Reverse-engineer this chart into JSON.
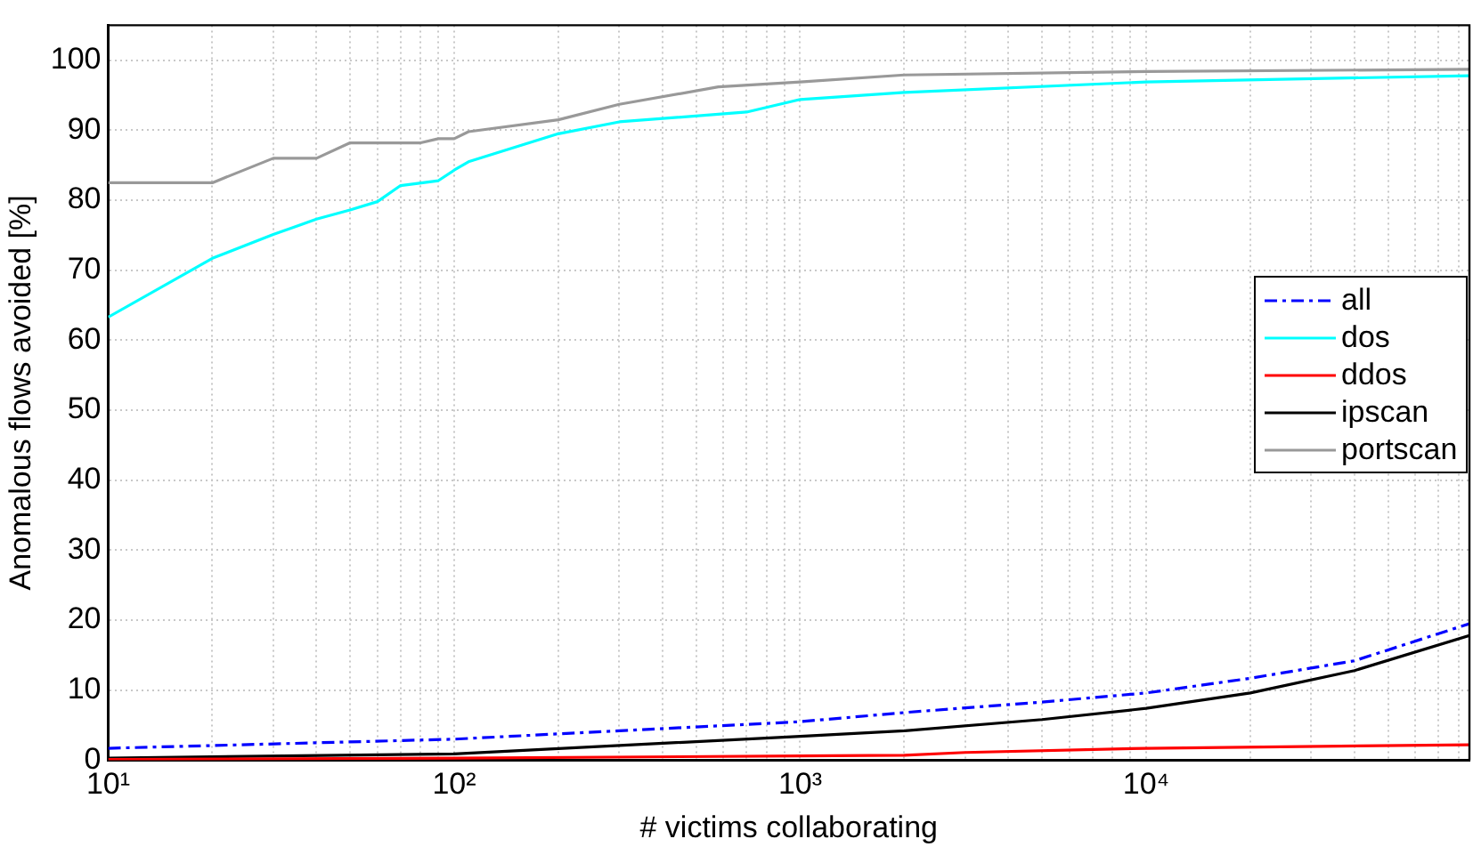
{
  "chart_data": {
    "type": "line",
    "xlabel": "# victims collaborating",
    "ylabel": "Anomalous flows avoided [%]",
    "log": "x",
    "grid": true,
    "legend": "right",
    "marker": "none",
    "xlim": [
      10,
      86000
    ],
    "ylim": [
      0,
      105
    ],
    "xticks": [
      {
        "value": 10,
        "label": "10¹"
      },
      {
        "value": 20,
        "label": null
      },
      {
        "value": 30,
        "label": null
      },
      {
        "value": 40,
        "label": null
      },
      {
        "value": 50,
        "label": null
      },
      {
        "value": 60,
        "label": null
      },
      {
        "value": 70,
        "label": null
      },
      {
        "value": 80,
        "label": null
      },
      {
        "value": 90,
        "label": null
      },
      {
        "value": 100,
        "label": "10²"
      },
      {
        "value": 200,
        "label": null
      },
      {
        "value": 300,
        "label": null
      },
      {
        "value": 400,
        "label": null
      },
      {
        "value": 500,
        "label": null
      },
      {
        "value": 600,
        "label": null
      },
      {
        "value": 700,
        "label": null
      },
      {
        "value": 800,
        "label": null
      },
      {
        "value": 900,
        "label": null
      },
      {
        "value": 1000,
        "label": "10³"
      },
      {
        "value": 2000,
        "label": null
      },
      {
        "value": 3000,
        "label": null
      },
      {
        "value": 4000,
        "label": null
      },
      {
        "value": 5000,
        "label": null
      },
      {
        "value": 6000,
        "label": null
      },
      {
        "value": 7000,
        "label": null
      },
      {
        "value": 8000,
        "label": null
      },
      {
        "value": 9000,
        "label": null
      },
      {
        "value": 10000,
        "label": "10⁴"
      },
      {
        "value": 20000,
        "label": null
      },
      {
        "value": 30000,
        "label": null
      },
      {
        "value": 40000,
        "label": null
      },
      {
        "value": 50000,
        "label": null
      },
      {
        "value": 60000,
        "label": null
      },
      {
        "value": 70000,
        "label": null
      },
      {
        "value": 80000,
        "label": null
      }
    ],
    "yticks": [
      0,
      10,
      20,
      30,
      40,
      50,
      60,
      70,
      80,
      90,
      100
    ],
    "series": [
      {
        "name": "all",
        "color": "#0000ff",
        "line_style": "dashed",
        "x": [
          10,
          100,
          1000,
          2000,
          5000,
          10000,
          20000,
          40000,
          86000
        ],
        "values": [
          1.7,
          3.0,
          5.5,
          6.8,
          8.3,
          9.6,
          11.7,
          14.2,
          19.5
        ]
      },
      {
        "name": "dos",
        "color": "#00ffff",
        "line_style": "solid",
        "x": [
          10,
          20,
          30,
          40,
          50,
          60,
          70,
          90,
          100,
          110,
          200,
          300,
          700,
          1000,
          2000,
          10000,
          86000
        ],
        "values": [
          63.3,
          71.7,
          75.1,
          77.3,
          78.6,
          79.8,
          82.1,
          82.8,
          84.3,
          85.5,
          89.5,
          91.2,
          92.6,
          94.4,
          95.4,
          96.9,
          97.8
        ]
      },
      {
        "name": "ddos",
        "color": "#ff0000",
        "line_style": "solid",
        "x": [
          10,
          100,
          1000,
          2000,
          3000,
          10000,
          86000
        ],
        "values": [
          0.1,
          0.3,
          0.6,
          0.7,
          1.1,
          1.7,
          2.2
        ]
      },
      {
        "name": "ipscan",
        "color": "#000000",
        "line_style": "solid",
        "x": [
          10,
          100,
          1000,
          2000,
          5000,
          10000,
          20000,
          40000,
          86000
        ],
        "values": [
          0.3,
          0.9,
          3.4,
          4.2,
          5.8,
          7.4,
          9.6,
          12.8,
          17.8
        ]
      },
      {
        "name": "portscan",
        "color": "#999999",
        "line_style": "solid",
        "x": [
          10,
          20,
          30,
          40,
          50,
          80,
          90,
          100,
          110,
          200,
          300,
          580,
          1000,
          2000,
          10000,
          86000
        ],
        "values": [
          82.5,
          82.5,
          86.0,
          86.0,
          88.2,
          88.2,
          88.8,
          88.8,
          89.8,
          91.5,
          93.7,
          96.2,
          96.9,
          97.9,
          98.4,
          98.7
        ]
      }
    ]
  }
}
